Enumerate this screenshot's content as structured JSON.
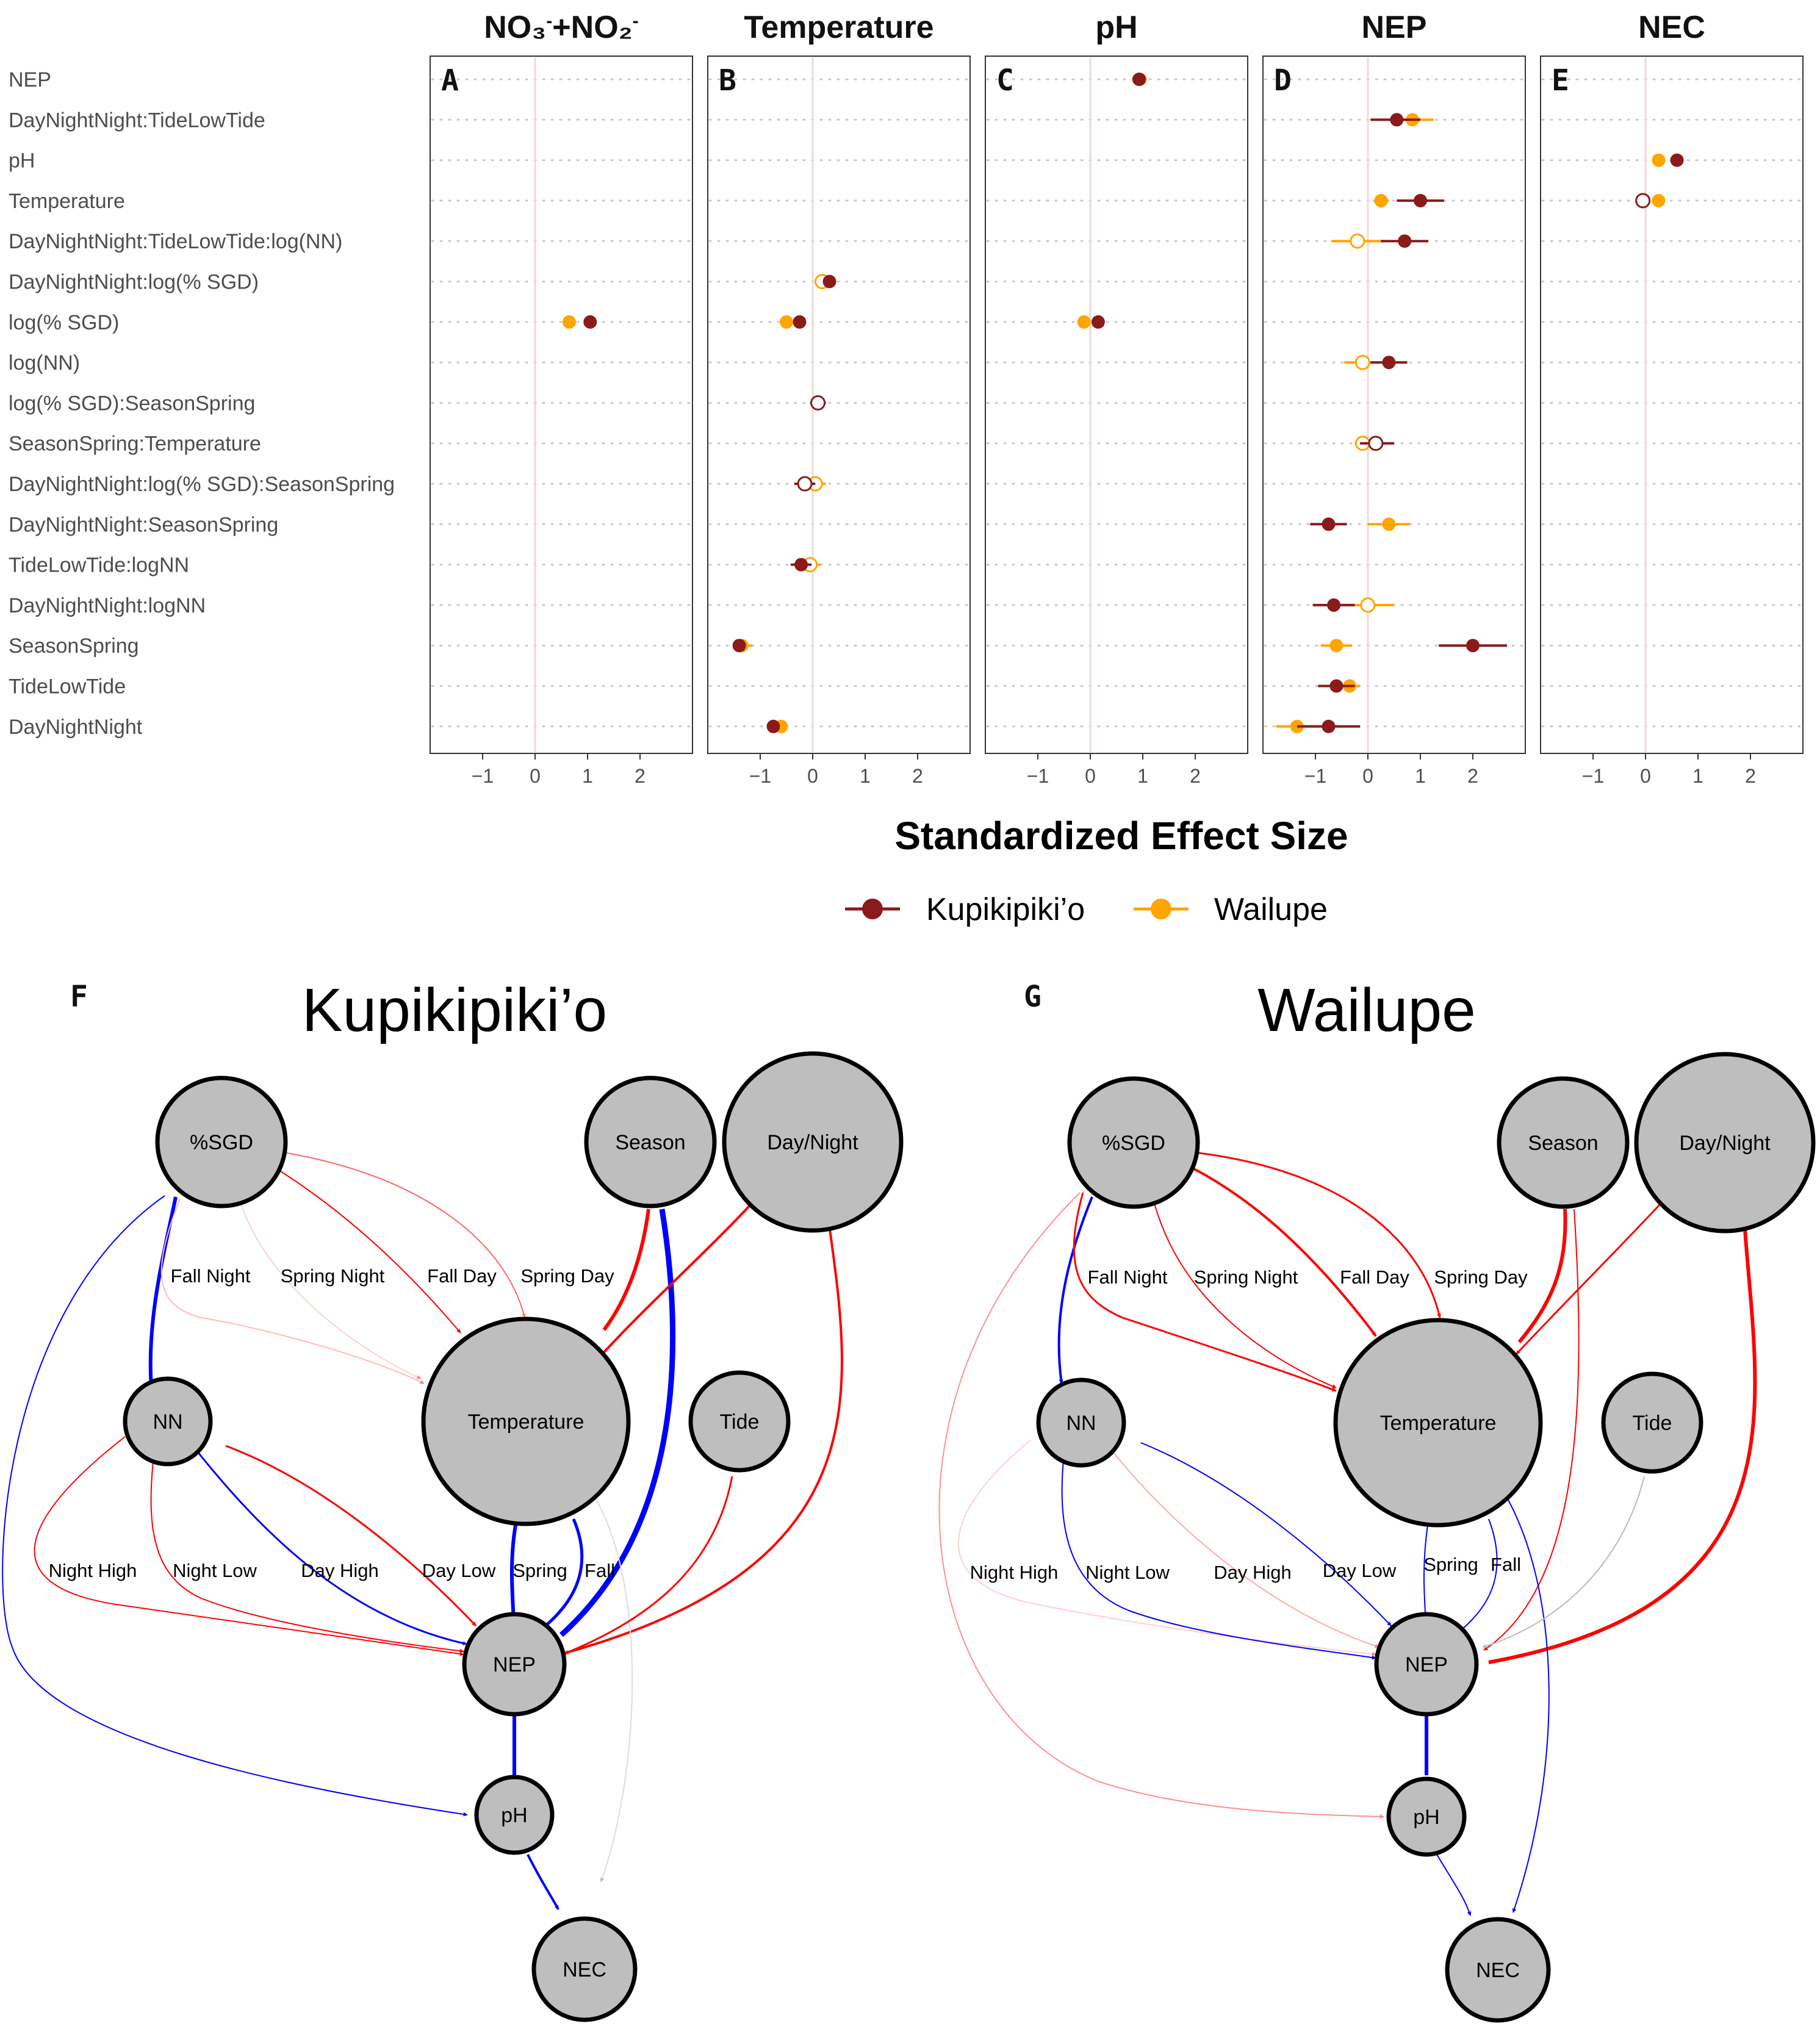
{
  "chart_data": [
    {
      "type": "scatter",
      "variant": "forest-plot",
      "xlabel": "Standardized Effect Size",
      "xlim": [
        -2,
        3
      ],
      "xticks": [
        -1,
        0,
        1,
        2
      ],
      "zero_line": true,
      "grid": "dotted horizontal",
      "legend_position": "bottom",
      "series_colors": {
        "Kupikipiki'o": "#8b1a1a",
        "Wailupe": "#ffa500"
      },
      "legend": {
        "kupikipiki_label": "Kupikipiki’o",
        "wailupe_label": "Wailupe"
      },
      "predictors": [
        "NEP",
        "DayNightNight:TideLowTide",
        "pH",
        "Temperature",
        "DayNightNight:TideLowTide:log(NN)",
        "DayNightNight:log(% SGD)",
        "log(% SGD)",
        "log(NN)",
        "log(% SGD):SeasonSpring",
        "SeasonSpring:Temperature",
        "DayNightNight:log(% SGD):SeasonSpring",
        "DayNightNight:SeasonSpring",
        "TideLowTide:logNN",
        "DayNightNight:logNN",
        "SeasonSpring",
        "TideLowTide",
        "DayNightNight"
      ],
      "panels": [
        {
          "id": "nn",
          "letter": "A",
          "title_main": "NO₃",
          "title_sup1": "-",
          "title_mid": "+NO₂",
          "title_sup2": "-",
          "points": [
            {
              "predictor": "log(% SGD)",
              "site": "Kupikipiki'o",
              "estimate": 1.05,
              "lower": 1.0,
              "upper": 1.1,
              "significant": true
            },
            {
              "predictor": "log(% SGD)",
              "site": "Wailupe",
              "estimate": 0.65,
              "lower": 0.6,
              "upper": 0.7,
              "significant": true
            }
          ]
        },
        {
          "id": "temperature",
          "letter": "B",
          "title": "Temperature",
          "points": [
            {
              "predictor": "DayNightNight:log(% SGD)",
              "site": "Kupikipiki'o",
              "estimate": 0.32,
              "lower": 0.22,
              "upper": 0.42,
              "significant": true
            },
            {
              "predictor": "DayNightNight:log(% SGD)",
              "site": "Wailupe",
              "estimate": 0.18,
              "lower": 0.08,
              "upper": 0.28,
              "significant": false
            },
            {
              "predictor": "log(% SGD)",
              "site": "Kupikipiki'o",
              "estimate": -0.25,
              "lower": -0.33,
              "upper": -0.17,
              "significant": true
            },
            {
              "predictor": "log(% SGD)",
              "site": "Wailupe",
              "estimate": -0.5,
              "lower": -0.58,
              "upper": -0.42,
              "significant": true
            },
            {
              "predictor": "log(% SGD):SeasonSpring",
              "site": "Kupikipiki'o",
              "estimate": 0.1,
              "lower": -0.05,
              "upper": 0.25,
              "significant": false
            },
            {
              "predictor": "log(% SGD):SeasonSpring",
              "site": "Wailupe",
              "estimate": 0.1,
              "lower": 0.0,
              "upper": 0.2,
              "significant": true
            },
            {
              "predictor": "DayNightNight:log(% SGD):SeasonSpring",
              "site": "Kupikipiki'o",
              "estimate": -0.15,
              "lower": -0.35,
              "upper": 0.05,
              "significant": false
            },
            {
              "predictor": "DayNightNight:log(% SGD):SeasonSpring",
              "site": "Wailupe",
              "estimate": 0.05,
              "lower": -0.15,
              "upper": 0.25,
              "significant": false
            },
            {
              "predictor": "TideLowTide:logNN",
              "site": "Kupikipiki'o",
              "estimate": -0.22,
              "lower": -0.42,
              "upper": -0.02,
              "significant": true
            },
            {
              "predictor": "TideLowTide:logNN",
              "site": "Wailupe",
              "estimate": -0.05,
              "lower": -0.25,
              "upper": 0.15,
              "significant": false
            },
            {
              "predictor": "SeasonSpring",
              "site": "Kupikipiki'o",
              "estimate": -1.4,
              "lower": -1.5,
              "upper": -1.3,
              "significant": true
            },
            {
              "predictor": "SeasonSpring",
              "site": "Wailupe",
              "estimate": -1.35,
              "lower": -1.45,
              "upper": -1.15,
              "significant": true
            },
            {
              "predictor": "DayNightNight",
              "site": "Kupikipiki'o",
              "estimate": -0.75,
              "lower": -0.85,
              "upper": -0.65,
              "significant": true
            },
            {
              "predictor": "DayNightNight",
              "site": "Wailupe",
              "estimate": -0.6,
              "lower": -0.72,
              "upper": -0.48,
              "significant": true
            }
          ]
        },
        {
          "id": "ph",
          "letter": "C",
          "title": "pH",
          "points": [
            {
              "predictor": "NEP",
              "site": "Wailupe",
              "estimate": 0.95,
              "lower": 0.9,
              "upper": 1.0,
              "significant": true
            },
            {
              "predictor": "NEP",
              "site": "Kupikipiki'o",
              "estimate": 0.93,
              "lower": 0.88,
              "upper": 0.98,
              "significant": true
            },
            {
              "predictor": "log(% SGD)",
              "site": "Kupikipiki'o",
              "estimate": 0.15,
              "lower": 0.1,
              "upper": 0.2,
              "significant": true
            },
            {
              "predictor": "log(% SGD)",
              "site": "Wailupe",
              "estimate": -0.12,
              "lower": -0.17,
              "upper": -0.07,
              "significant": true
            }
          ]
        },
        {
          "id": "nep",
          "letter": "D",
          "title": "NEP",
          "points": [
            {
              "predictor": "DayNightNight:TideLowTide",
              "site": "Kupikipiki'o",
              "estimate": 0.55,
              "lower": 0.05,
              "upper": 1.0,
              "significant": true
            },
            {
              "predictor": "DayNightNight:TideLowTide",
              "site": "Wailupe",
              "estimate": 0.85,
              "lower": 0.5,
              "upper": 1.25,
              "significant": true
            },
            {
              "predictor": "Temperature",
              "site": "Kupikipiki'o",
              "estimate": 1.0,
              "lower": 0.55,
              "upper": 1.45,
              "significant": true
            },
            {
              "predictor": "Temperature",
              "site": "Wailupe",
              "estimate": 0.25,
              "lower": 0.1,
              "upper": 0.4,
              "significant": true
            },
            {
              "predictor": "DayNightNight:TideLowTide:log(NN)",
              "site": "Kupikipiki'o",
              "estimate": 0.7,
              "lower": 0.25,
              "upper": 1.15,
              "significant": true
            },
            {
              "predictor": "DayNightNight:TideLowTide:log(NN)",
              "site": "Wailupe",
              "estimate": -0.2,
              "lower": -0.7,
              "upper": 0.3,
              "significant": false
            },
            {
              "predictor": "log(NN)",
              "site": "Kupikipiki'o",
              "estimate": 0.4,
              "lower": 0.05,
              "upper": 0.75,
              "significant": true
            },
            {
              "predictor": "log(NN)",
              "site": "Wailupe",
              "estimate": -0.1,
              "lower": -0.45,
              "upper": 0.25,
              "significant": false
            },
            {
              "predictor": "SeasonSpring:Temperature",
              "site": "Kupikipiki'o",
              "estimate": 0.15,
              "lower": -0.15,
              "upper": 0.5,
              "significant": false
            },
            {
              "predictor": "SeasonSpring:Temperature",
              "site": "Wailupe",
              "estimate": -0.1,
              "lower": -0.25,
              "upper": 0.05,
              "significant": false
            },
            {
              "predictor": "DayNightNight:SeasonSpring",
              "site": "Kupikipiki'o",
              "estimate": -0.75,
              "lower": -1.1,
              "upper": -0.4,
              "significant": true
            },
            {
              "predictor": "DayNightNight:SeasonSpring",
              "site": "Wailupe",
              "estimate": 0.4,
              "lower": 0.0,
              "upper": 0.8,
              "significant": true
            },
            {
              "predictor": "DayNightNight:logNN",
              "site": "Kupikipiki'o",
              "estimate": -0.65,
              "lower": -1.05,
              "upper": -0.25,
              "significant": true
            },
            {
              "predictor": "DayNightNight:logNN",
              "site": "Wailupe",
              "estimate": 0.0,
              "lower": -0.5,
              "upper": 0.5,
              "significant": false
            },
            {
              "predictor": "SeasonSpring",
              "site": "Kupikipiki'o",
              "estimate": 2.0,
              "lower": 1.35,
              "upper": 2.65,
              "significant": true
            },
            {
              "predictor": "SeasonSpring",
              "site": "Wailupe",
              "estimate": -0.6,
              "lower": -0.9,
              "upper": -0.3,
              "significant": true
            },
            {
              "predictor": "TideLowTide",
              "site": "Kupikipiki'o",
              "estimate": -0.6,
              "lower": -0.95,
              "upper": -0.25,
              "significant": true
            },
            {
              "predictor": "TideLowTide",
              "site": "Wailupe",
              "estimate": -0.35,
              "lower": -0.55,
              "upper": -0.15,
              "significant": true
            },
            {
              "predictor": "DayNightNight",
              "site": "Kupikipiki'o",
              "estimate": -0.75,
              "lower": -1.35,
              "upper": -0.15,
              "significant": true
            },
            {
              "predictor": "DayNightNight",
              "site": "Wailupe",
              "estimate": -1.35,
              "lower": -1.75,
              "upper": -0.95,
              "significant": true
            }
          ]
        },
        {
          "id": "nec",
          "letter": "E",
          "title": "NEC",
          "points": [
            {
              "predictor": "pH",
              "site": "Kupikipiki'o",
              "estimate": 0.6,
              "lower": 0.5,
              "upper": 0.7,
              "significant": true
            },
            {
              "predictor": "pH",
              "site": "Wailupe",
              "estimate": 0.25,
              "lower": 0.15,
              "upper": 0.35,
              "significant": true
            },
            {
              "predictor": "Temperature",
              "site": "Kupikipiki'o",
              "estimate": -0.05,
              "lower": -0.15,
              "upper": 0.05,
              "significant": false
            },
            {
              "predictor": "Temperature",
              "site": "Wailupe",
              "estimate": 0.25,
              "lower": 0.15,
              "upper": 0.35,
              "significant": true
            }
          ]
        }
      ]
    },
    {
      "type": "diagram",
      "variant": "path-network",
      "networks": [
        {
          "id": "kupikipikio",
          "letter": "F",
          "title": "Kupikipiki’o",
          "nodes": [
            {
              "id": "sgd",
              "label": "%SGD"
            },
            {
              "id": "season",
              "label": "Season"
            },
            {
              "id": "daynight",
              "label": "Day/Night"
            },
            {
              "id": "nn",
              "label": "NN"
            },
            {
              "id": "temp",
              "label": "Temperature"
            },
            {
              "id": "tide",
              "label": "Tide"
            },
            {
              "id": "nep",
              "label": "NEP"
            },
            {
              "id": "ph",
              "label": "pH"
            },
            {
              "id": "nec",
              "label": "NEC"
            }
          ],
          "edge_labels": [
            "Fall Night",
            "Spring Night",
            "Fall Day",
            "Spring Day",
            "Night High",
            "Night Low",
            "Day High",
            "Day Low",
            "Spring",
            "Fall"
          ]
        },
        {
          "id": "wailupe",
          "letter": "G",
          "title": "Wailupe",
          "nodes": [
            {
              "id": "sgd",
              "label": "%SGD"
            },
            {
              "id": "season",
              "label": "Season"
            },
            {
              "id": "daynight",
              "label": "Day/Night"
            },
            {
              "id": "nn",
              "label": "NN"
            },
            {
              "id": "temp",
              "label": "Temperature"
            },
            {
              "id": "tide",
              "label": "Tide"
            },
            {
              "id": "nep",
              "label": "NEP"
            },
            {
              "id": "ph",
              "label": "pH"
            },
            {
              "id": "nec",
              "label": "NEC"
            }
          ],
          "edge_labels": [
            "Fall Night",
            "Spring Night",
            "Fall Day",
            "Spring Day",
            "Night High",
            "Night Low",
            "Day High",
            "Day Low",
            "Spring",
            "Fall"
          ]
        }
      ],
      "colors": {
        "positive": "#ff0000",
        "negative": "#0000ff",
        "neutral": "#bbbbbb",
        "node_fill": "#bebebe"
      }
    }
  ]
}
